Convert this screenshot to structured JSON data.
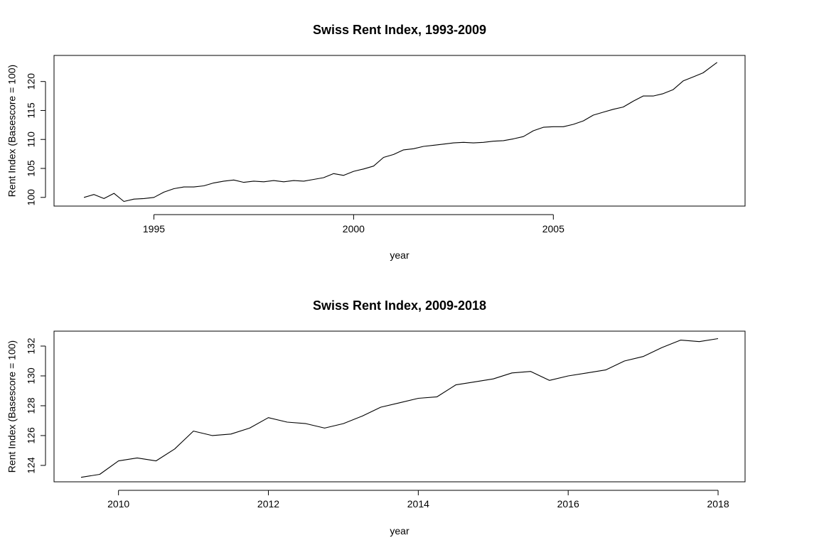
{
  "chart_data": [
    {
      "type": "line",
      "title": "Swiss Rent Index, 1993-2009",
      "xlabel": "year",
      "ylabel": "Rent Index (Basescore = 100)",
      "xlim": [
        1992.5,
        2009.8
      ],
      "ylim": [
        98.5,
        124.5
      ],
      "xticks": [
        1995,
        2000,
        2005
      ],
      "xtick_labels": [
        "1995",
        "2000",
        "2005"
      ],
      "yticks": [
        100,
        105,
        110,
        115,
        120
      ],
      "ytick_labels": [
        "100",
        "105",
        "110",
        "115",
        "120"
      ],
      "grid": false,
      "series": [
        {
          "x": [
            1993.25,
            1993.5,
            1993.75,
            1994.0,
            1994.25,
            1994.5,
            1994.75,
            1995.0,
            1995.25,
            1995.5,
            1995.75,
            1996.0,
            1996.25,
            1996.5,
            1996.75,
            1997.0,
            1997.25,
            1997.5,
            1997.75,
            1998.0,
            1998.25,
            1998.5,
            1998.75,
            1999.0,
            1999.25,
            1999.5,
            1999.75,
            2000.0,
            2000.25,
            2000.5,
            2000.75,
            2001.0,
            2001.25,
            2001.5,
            2001.75,
            2002.0,
            2002.25,
            2002.5,
            2002.75,
            2003.0,
            2003.25,
            2003.5,
            2003.75,
            2004.0,
            2004.25,
            2004.5,
            2004.75,
            2005.0,
            2005.25,
            2005.5,
            2005.75,
            2006.0,
            2006.25,
            2006.5,
            2006.75,
            2007.0,
            2007.25,
            2007.5,
            2007.75,
            2008.0,
            2008.25,
            2008.5,
            2008.75,
            2009.0
          ],
          "values": [
            100.0,
            100.5,
            99.8,
            100.7,
            99.3,
            99.7,
            99.8,
            100.0,
            100.9,
            101.5,
            101.8,
            101.8,
            102.0,
            102.5,
            102.8,
            103.0,
            102.6,
            102.8,
            102.7,
            102.9,
            102.7,
            102.9,
            102.8,
            103.1,
            103.4,
            104.1,
            103.8,
            104.5,
            104.9,
            105.4,
            106.9,
            107.4,
            108.2,
            108.4,
            108.8,
            109.0,
            109.2,
            109.4,
            109.5,
            109.4,
            109.5,
            109.7,
            109.8,
            110.1,
            110.5,
            111.5,
            112.1,
            112.2,
            112.2,
            112.6,
            113.2,
            114.2,
            114.7,
            115.2,
            115.6,
            116.6,
            117.5,
            117.5,
            117.9,
            118.6,
            120.1,
            120.8,
            121.5,
            122.8
          ],
          "end": [
            2009.1,
            123.3
          ]
        }
      ]
    },
    {
      "type": "line",
      "title": "Swiss Rent Index, 2009-2018",
      "xlabel": "year",
      "ylabel": "Rent Index (Basescore = 100)",
      "xlim": [
        2009.14,
        2018.36
      ],
      "ylim": [
        122.9,
        133.0
      ],
      "xticks": [
        2010,
        2012,
        2014,
        2016,
        2018
      ],
      "xtick_labels": [
        "2010",
        "2012",
        "2014",
        "2016",
        "2018"
      ],
      "yticks": [
        124,
        126,
        128,
        130,
        132
      ],
      "ytick_labels": [
        "124",
        "126",
        "128",
        "130",
        "132"
      ],
      "grid": false,
      "series": [
        {
          "x": [
            2009.5,
            2009.75,
            2010.0,
            2010.25,
            2010.5,
            2010.75,
            2011.0,
            2011.25,
            2011.5,
            2011.75,
            2012.0,
            2012.25,
            2012.5,
            2012.75,
            2013.0,
            2013.25,
            2013.5,
            2013.75,
            2014.0,
            2014.25,
            2014.5,
            2014.75,
            2015.0,
            2015.25,
            2015.5,
            2015.75,
            2016.0,
            2016.25,
            2016.5,
            2016.75,
            2017.0,
            2017.25,
            2017.5,
            2017.75,
            2018.0
          ],
          "values": [
            123.2,
            123.4,
            124.3,
            124.5,
            124.3,
            125.1,
            126.3,
            126.0,
            126.1,
            126.5,
            127.2,
            126.9,
            126.8,
            126.5,
            126.8,
            127.3,
            127.9,
            128.2,
            128.5,
            128.6,
            129.4,
            129.6,
            129.8,
            130.2,
            130.3,
            129.7,
            130.0,
            130.2,
            130.4,
            131.0,
            131.3,
            131.9,
            132.4,
            132.3,
            132.5
          ]
        }
      ]
    }
  ]
}
